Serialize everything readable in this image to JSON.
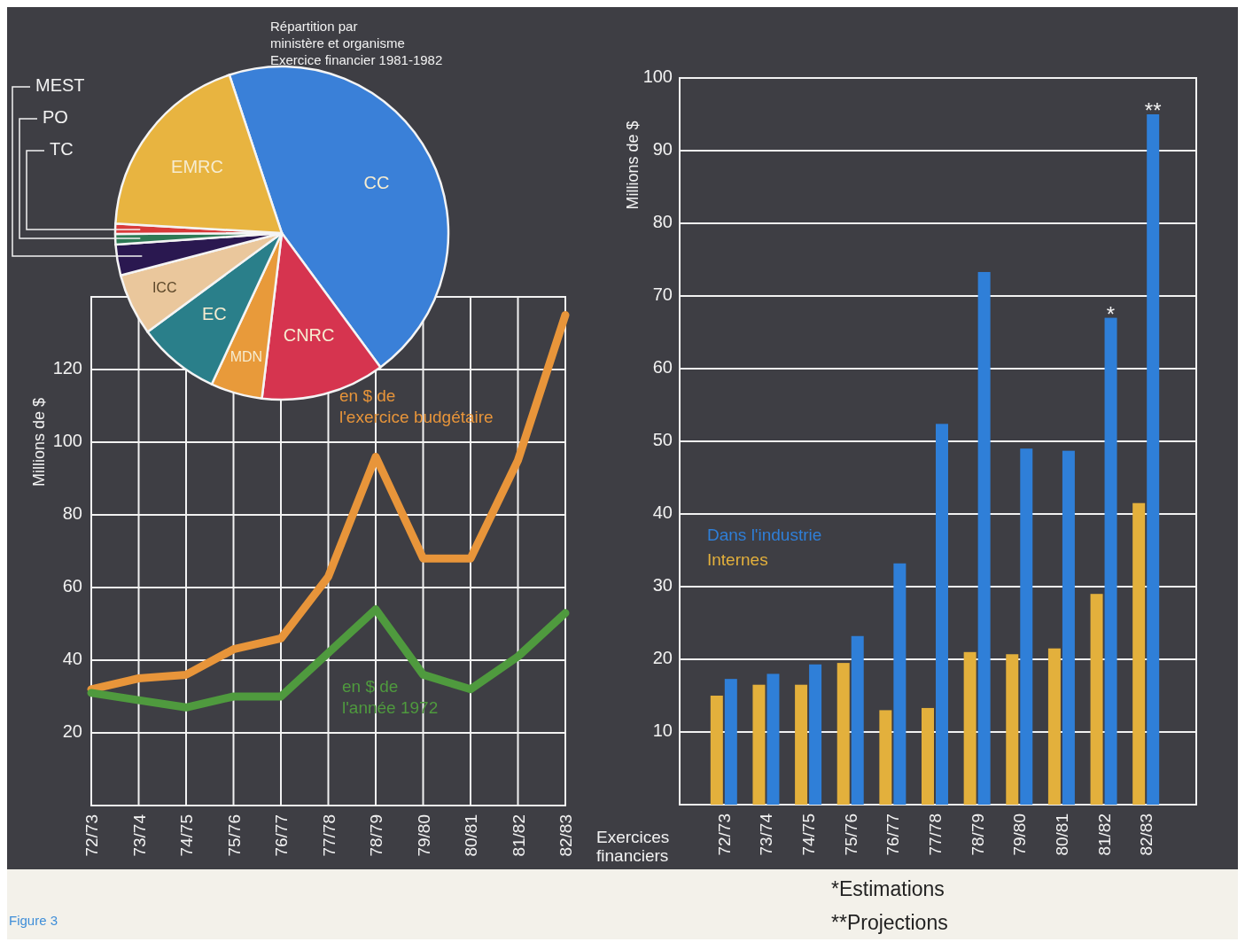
{
  "chart_data": [
    {
      "type": "pie",
      "title": "Répartition par\nministère et organisme\nExercice financier 1981-1982",
      "categories": [
        "CC",
        "CNRC",
        "MDN",
        "EC",
        "ICC",
        "MEST",
        "PO",
        "TC",
        "EMRC"
      ],
      "values": [
        45,
        12,
        5,
        8,
        6,
        3,
        1,
        1,
        19
      ],
      "colors": [
        "#3a80d8",
        "#d6344f",
        "#e89a3a",
        "#2a7f8a",
        "#eac79c",
        "#2a1850",
        "#2e7a55",
        "#d83a3a",
        "#e8b440"
      ],
      "annotations": [
        "Figure 3"
      ]
    },
    {
      "type": "line",
      "categories": [
        "72/73",
        "73/74",
        "74/75",
        "75/76",
        "76/77",
        "77/78",
        "78/79",
        "79/80",
        "80/81",
        "81/82",
        "82/83"
      ],
      "series": [
        {
          "name": "en $ de\nl'exercice budgétaire",
          "color": "#e8953a",
          "values": [
            32,
            35,
            36,
            43,
            46,
            63,
            96,
            68,
            68,
            95,
            135
          ]
        },
        {
          "name": "en $ de\nl'année 1972",
          "color": "#4f9a3e",
          "values": [
            31,
            29,
            27,
            30,
            30,
            42,
            54,
            36,
            32,
            41,
            53
          ]
        }
      ],
      "ylabel": "Millions de $",
      "ylim": [
        0,
        140
      ],
      "yticks": [
        20,
        40,
        60,
        80,
        100,
        120
      ],
      "grid": true
    },
    {
      "type": "bar",
      "categories": [
        "72/73",
        "73/74",
        "74/75",
        "75/76",
        "76/77",
        "77/78",
        "78/79",
        "79/80",
        "80/81",
        "81/82",
        "82/83"
      ],
      "series": [
        {
          "name": "Internes",
          "color": "#e3b03c",
          "values": [
            15,
            16.5,
            16.5,
            19.5,
            13,
            13.3,
            21,
            20.7,
            21.5,
            29,
            41.5
          ]
        },
        {
          "name": "Dans l'industrie",
          "color": "#2f7fd8",
          "values": [
            17.3,
            18,
            19.3,
            23.2,
            33.2,
            52.4,
            73.3,
            49,
            48.7,
            67,
            95
          ]
        }
      ],
      "xlabel": "Exercices\nfinanciers",
      "ylabel": "Millions de $",
      "ylim": [
        0,
        100
      ],
      "yticks": [
        10,
        20,
        30,
        40,
        50,
        60,
        70,
        80,
        90,
        100
      ],
      "grid": "y",
      "legend": "left",
      "annotations": [
        {
          "text": "*",
          "x": "81/82",
          "y": 67
        },
        {
          "text": "**",
          "x": "82/83",
          "y": 95
        },
        "*Estimations",
        "**Projections"
      ]
    }
  ]
}
